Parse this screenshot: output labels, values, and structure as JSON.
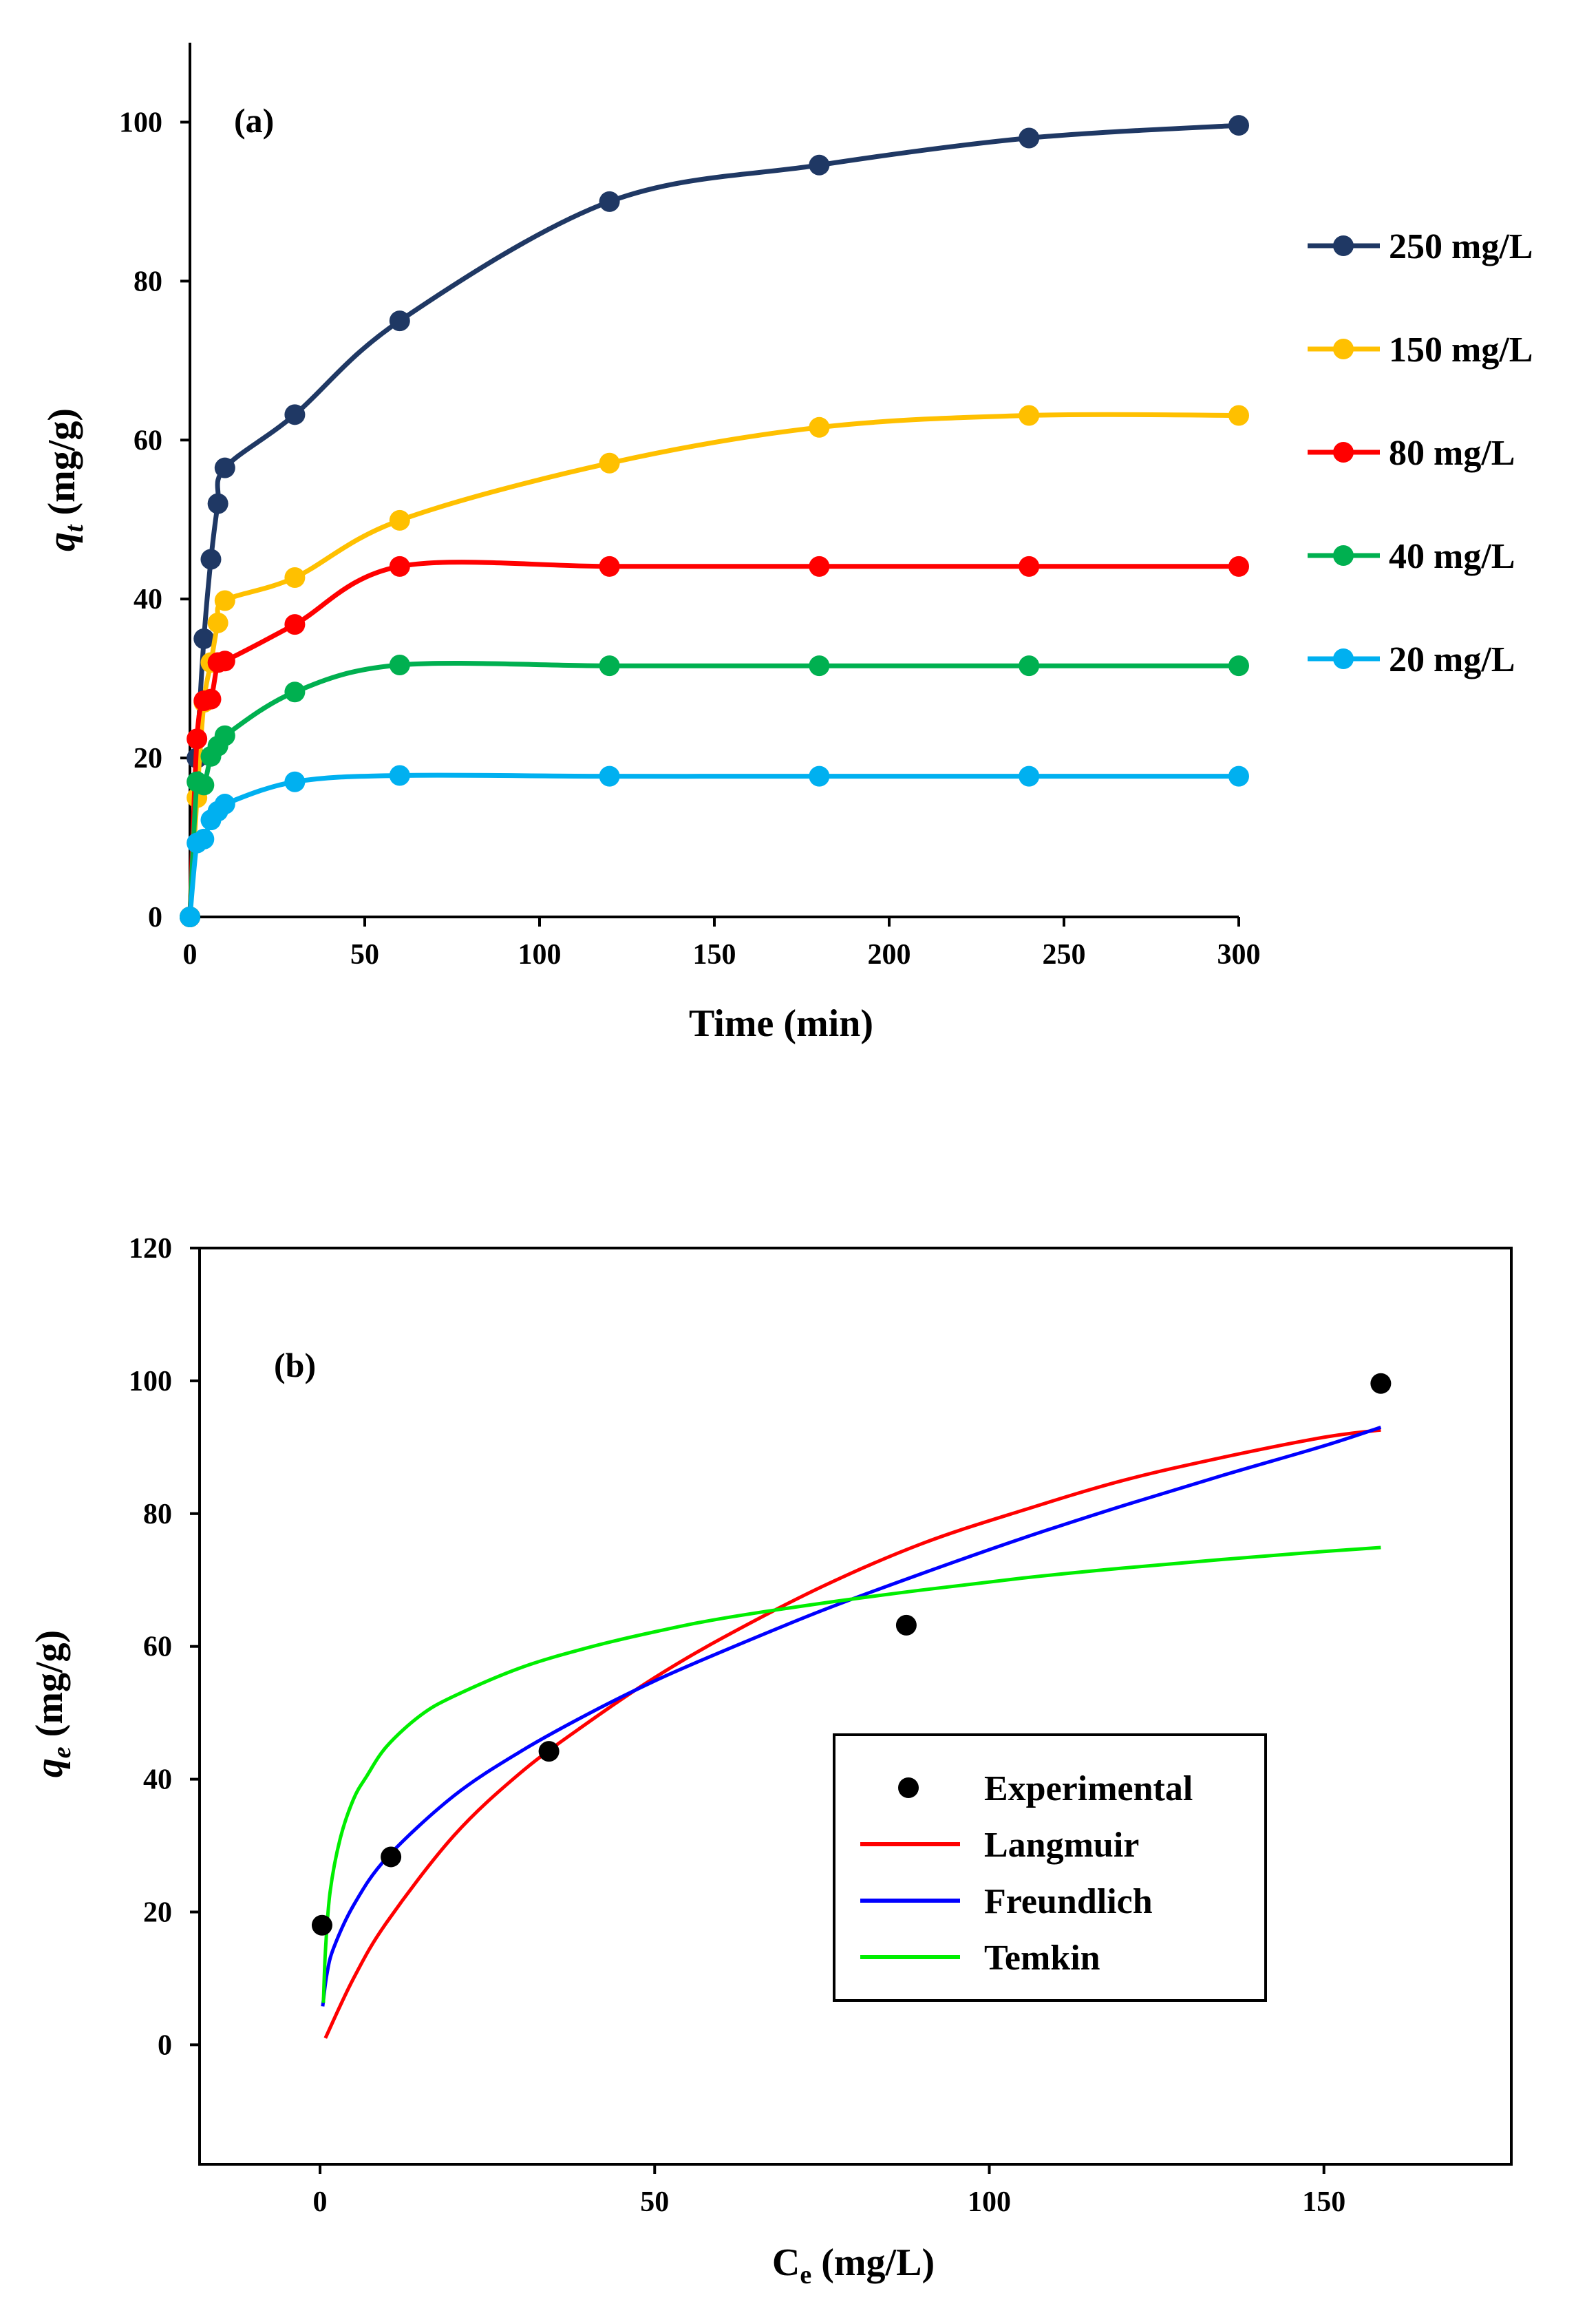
{
  "chart_data": [
    {
      "type": "line",
      "panel_label": "(a)",
      "xlabel": "Time (min)",
      "ylabel": "q_t (mg/g)",
      "ylabel_main": "q",
      "ylabel_sub": "t",
      "ylabel_unit": " (mg/g)",
      "xlim": [
        0,
        300
      ],
      "ylim": [
        0,
        110
      ],
      "xticks": [
        0,
        50,
        100,
        150,
        200,
        250,
        300
      ],
      "yticks": [
        0,
        20,
        40,
        60,
        80,
        100
      ],
      "grid": false,
      "legend_position": "right",
      "x": [
        0,
        2,
        4,
        6,
        8,
        10,
        30,
        60,
        120,
        180,
        240,
        300
      ],
      "series": [
        {
          "name": "250 mg/L",
          "color": "#1f3864",
          "values": [
            0,
            20,
            35,
            45,
            52,
            56.5,
            63.2,
            75,
            90,
            94.6,
            98,
            99.6
          ]
        },
        {
          "name": "150 mg/L",
          "color": "#ffc000",
          "values": [
            0,
            15,
            27,
            32,
            37,
            39.8,
            42.7,
            49.9,
            57.1,
            61.6,
            63.1,
            63.1
          ]
        },
        {
          "name": "80 mg/L",
          "color": "#ff0000",
          "values": [
            0,
            22.4,
            27.2,
            27.4,
            32,
            32.2,
            36.8,
            44.1,
            44.1,
            44.1,
            44.1,
            44.1
          ]
        },
        {
          "name": "40 mg/L",
          "color": "#00b050",
          "values": [
            0,
            17,
            16.6,
            20.2,
            21.5,
            22.8,
            28.3,
            31.7,
            31.6,
            31.6,
            31.6,
            31.6
          ]
        },
        {
          "name": "20 mg/L",
          "color": "#00b0f0",
          "values": [
            0,
            9.3,
            9.8,
            12.2,
            13.3,
            14.2,
            17,
            17.8,
            17.7,
            17.7,
            17.7,
            17.7
          ]
        }
      ]
    },
    {
      "type": "scatter",
      "panel_label": "(b)",
      "xlabel": "C_e (mg/L)",
      "xlabel_main": "C",
      "xlabel_sub": "e",
      "xlabel_unit": " (mg/L)",
      "ylabel": "q_e (mg/g)",
      "ylabel_main": "q",
      "ylabel_sub": "e",
      "ylabel_unit": " (mg/g)",
      "xlim": [
        -18,
        178
      ],
      "ylim": [
        -18,
        120
      ],
      "xticks": [
        0,
        50,
        100,
        150
      ],
      "yticks": [
        0,
        20,
        40,
        60,
        80,
        100,
        120
      ],
      "grid": false,
      "legend_position": "lower-right",
      "experimental": {
        "name": "Experimental",
        "color": "#000000",
        "x": [
          0.3,
          10.6,
          34.2,
          87.6,
          158.5
        ],
        "y": [
          18,
          28.3,
          44.2,
          63.2,
          99.6
        ]
      },
      "models": [
        {
          "name": "Langmuir",
          "color": "#ff0000",
          "x": [
            0.8,
            5,
            10,
            20,
            30,
            40,
            50,
            60,
            75,
            90,
            105,
            120,
            135,
            150,
            158.5
          ],
          "y": [
            1,
            10,
            18.5,
            31.5,
            41,
            48.5,
            55.3,
            61.2,
            69,
            75.5,
            80.5,
            85,
            88.5,
            91.5,
            92.6
          ]
        },
        {
          "name": "Freundlich",
          "color": "#0000ff",
          "x": [
            0.4,
            1,
            2,
            5,
            10,
            20,
            30,
            40,
            50,
            60,
            75,
            90,
            105,
            120,
            135,
            150,
            158.5
          ],
          "y": [
            5.8,
            10.5,
            14.5,
            21,
            28.2,
            37.5,
            44.2,
            49.8,
            54.8,
            59.2,
            65.4,
            71,
            76.3,
            81.2,
            85.8,
            90.2,
            93
          ]
        },
        {
          "name": "Temkin",
          "color": "#00ee00",
          "x": [
            0.5,
            0.8,
            1.5,
            3,
            5,
            7,
            10,
            15,
            20,
            30,
            40,
            50,
            60,
            75,
            90,
            105,
            120,
            135,
            150,
            158.5
          ],
          "y": [
            6.3,
            14,
            23,
            31,
            37,
            40.5,
            45,
            49.6,
            52.5,
            56.8,
            59.8,
            62.2,
            64.2,
            66.5,
            68.5,
            70.3,
            71.8,
            73.1,
            74.3,
            74.9
          ]
        }
      ]
    }
  ]
}
